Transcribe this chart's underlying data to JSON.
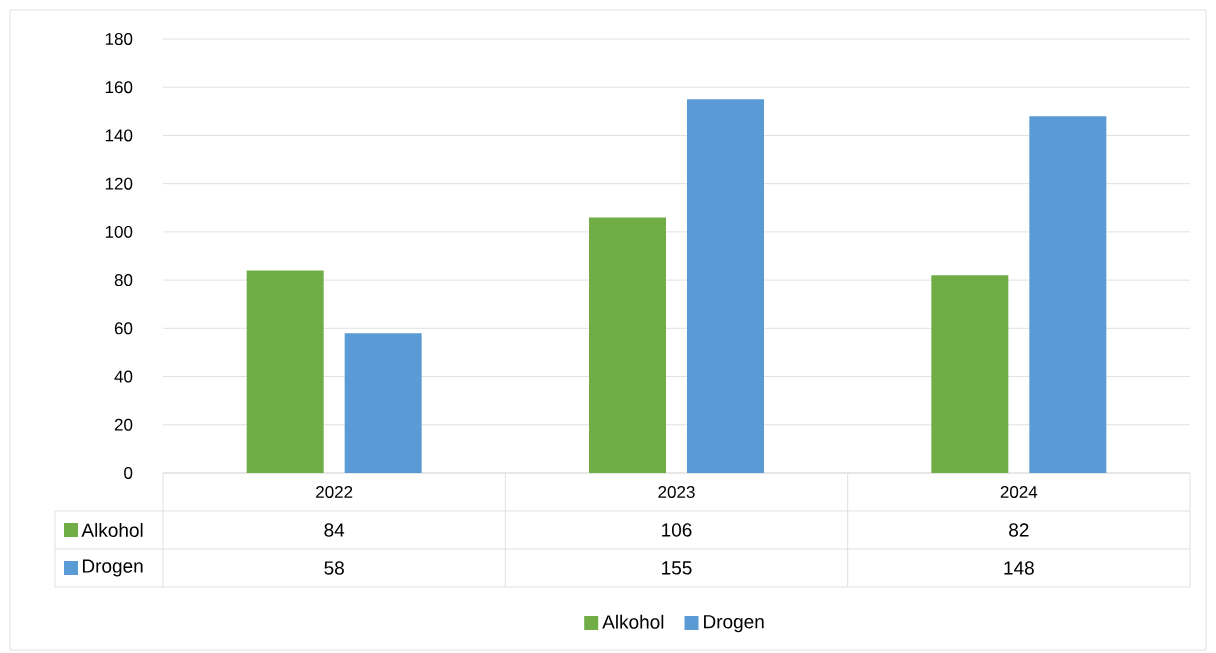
{
  "chart_data": {
    "type": "bar",
    "categories": [
      "2022",
      "2023",
      "2024"
    ],
    "series": [
      {
        "name": "Alkohol",
        "color": "#70ad47",
        "values": [
          84,
          106,
          82
        ]
      },
      {
        "name": "Drogen",
        "color": "#5b9bd5",
        "values": [
          58,
          155,
          148
        ]
      }
    ],
    "ylim": [
      0,
      180
    ],
    "yticks": [
      0,
      20,
      40,
      60,
      80,
      100,
      120,
      140,
      160,
      180
    ],
    "grid": "y",
    "legend": "bottom",
    "data_labels": true
  }
}
